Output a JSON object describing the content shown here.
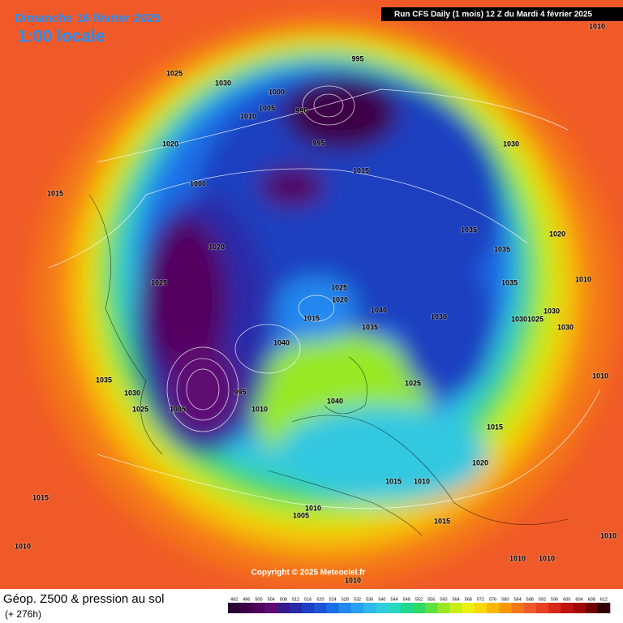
{
  "header": {
    "date": "Dimanche 16 février 2025",
    "time": "1:00 locale",
    "run": "Run CFS Daily (1 mois) 12 Z du Mardi 4 février 2025"
  },
  "map": {
    "isobar_labels": [
      1010,
      1025,
      1030,
      995,
      1000,
      1005,
      1010,
      990,
      1020,
      995,
      1030,
      1015,
      1000,
      1015,
      1035,
      1020,
      1020,
      1035,
      1025,
      1025,
      1010,
      1020,
      1035,
      1030,
      1015,
      1040,
      1030,
      1030,
      1025,
      1035,
      1030,
      1040,
      1010,
      1035,
      1030,
      1025,
      995,
      1025,
      1005,
      1010,
      1040,
      1015,
      1020,
      1015,
      1010,
      1015,
      1010,
      1005,
      1015,
      1010,
      1010,
      1010,
      1010,
      1010
    ],
    "copyright": "Copyright © 2025 Meteociel.fr"
  },
  "footer": {
    "title": "Géop. Z500 & pression au sol",
    "lead": "(+ 276h)"
  },
  "legend": {
    "values": [
      492,
      496,
      500,
      504,
      508,
      512,
      516,
      520,
      524,
      528,
      532,
      536,
      540,
      544,
      548,
      552,
      556,
      560,
      564,
      568,
      572,
      576,
      580,
      584,
      588,
      592,
      596,
      600,
      604,
      608,
      612
    ],
    "colors": [
      "#2b0033",
      "#3d0047",
      "#52005e",
      "#5e0a72",
      "#3a1a8a",
      "#2a2aa8",
      "#1f3fc2",
      "#1a55d8",
      "#1a6ee8",
      "#2088f0",
      "#2aa0f2",
      "#30b8ea",
      "#30cce0",
      "#28d8c0",
      "#20d890",
      "#30d860",
      "#60e040",
      "#98e828",
      "#c8ee18",
      "#eef010",
      "#f8d800",
      "#f8b800",
      "#f89800",
      "#f47818",
      "#f05a28",
      "#e84020",
      "#d82818",
      "#c01010",
      "#a00808",
      "#700000",
      "#300000"
    ]
  }
}
